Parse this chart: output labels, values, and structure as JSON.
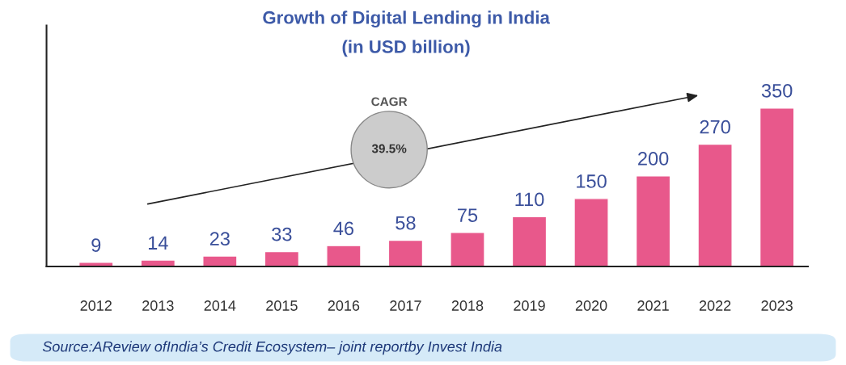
{
  "chart_data": {
    "type": "bar",
    "title": "Growth of Digital Lending in India",
    "subtitle": "(in USD billion)",
    "categories": [
      "2012",
      "2013",
      "2014",
      "2015",
      "2016",
      "2017",
      "2018",
      "2019",
      "2020",
      "2021",
      "2022",
      "2023"
    ],
    "values": [
      9,
      14,
      23,
      33,
      46,
      58,
      75,
      110,
      150,
      200,
      270,
      350
    ],
    "color": "#e8588b",
    "data_labels": true,
    "tick_labels": "x",
    "grid": false,
    "legend": false,
    "annotations": [
      "CAGR",
      "39.5%",
      "Source:AReview ofIndia’s Credit Ecosystem– joint reportby Invest India"
    ]
  }
}
